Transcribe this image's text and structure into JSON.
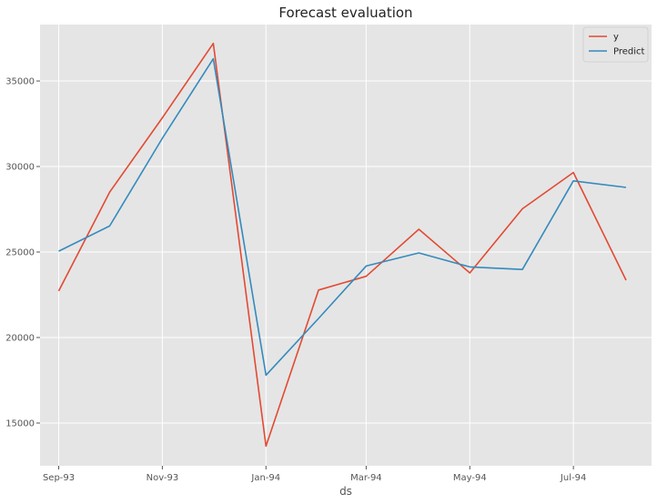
{
  "chart_data": {
    "type": "line",
    "title": "Forecast evaluation",
    "xlabel": "ds",
    "ylabel": "",
    "x": [
      "1993-09",
      "1993-10",
      "1993-11",
      "1993-12",
      "1994-01",
      "1994-02",
      "1994-03",
      "1994-04",
      "1994-05",
      "1994-06",
      "1994-07",
      "1994-08"
    ],
    "x_ticks": [
      {
        "x": "1993-09",
        "label": "Sep-93"
      },
      {
        "x": "1993-11",
        "label": "Nov-93"
      },
      {
        "x": "1994-01",
        "label": "Jan-94"
      },
      {
        "x": "1994-03",
        "label": "Mar-94"
      },
      {
        "x": "1994-05",
        "label": "May-94"
      },
      {
        "x": "1994-07",
        "label": "Jul-94"
      }
    ],
    "xlim": [
      "1993-08-21",
      "1994-08-16"
    ],
    "y_ticks": [
      15000,
      20000,
      25000,
      30000,
      35000
    ],
    "ylim": [
      12500,
      38300
    ],
    "grid": true,
    "legend_position": "top-right",
    "series": [
      {
        "name": "y",
        "color": "#e24a33",
        "values": [
          22720,
          28500,
          32850,
          37200,
          13650,
          22780,
          23580,
          26330,
          23780,
          27530,
          29650,
          23350
        ]
      },
      {
        "name": "Predict",
        "color": "#348abd",
        "values": [
          25050,
          26520,
          31650,
          36300,
          17800,
          21120,
          24180,
          24950,
          24130,
          23980,
          29160,
          28780
        ]
      }
    ]
  }
}
